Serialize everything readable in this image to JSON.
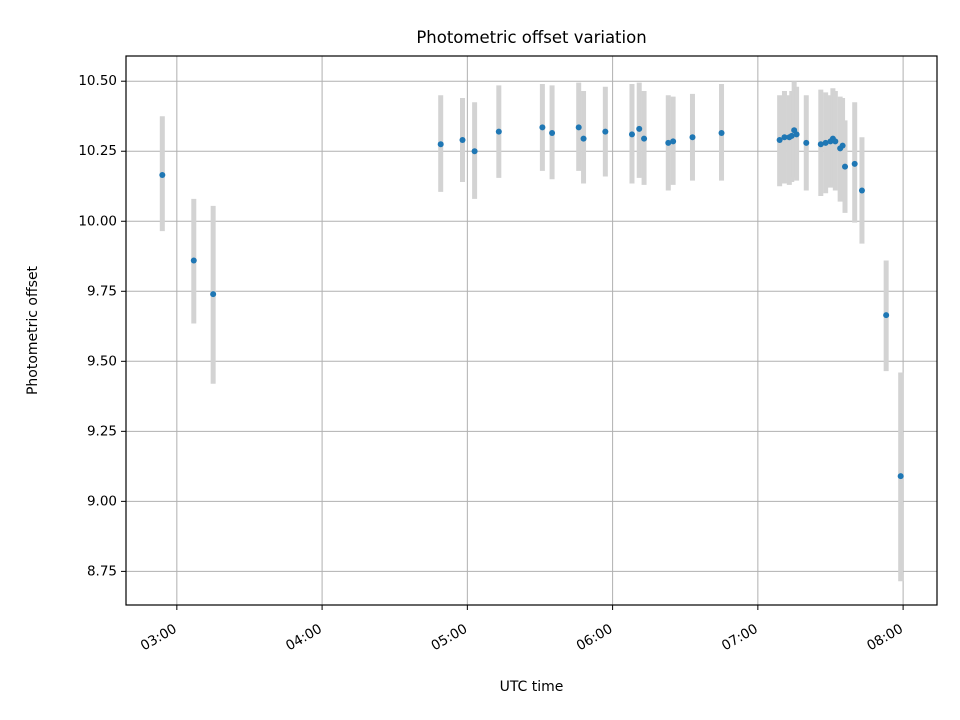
{
  "chart_data": {
    "type": "scatter",
    "title": "Photometric offset variation",
    "xlabel": "UTC time",
    "ylabel": "Photometric offset",
    "xlim": [
      "02:39",
      "08:14"
    ],
    "ylim": [
      8.63,
      10.59
    ],
    "x_ticks": [
      "03:00",
      "04:00",
      "05:00",
      "06:00",
      "07:00",
      "08:00"
    ],
    "y_ticks": [
      "8.75",
      "9.00",
      "9.25",
      "9.50",
      "9.75",
      "10.00",
      "10.25",
      "10.50"
    ],
    "grid": true,
    "colors": {
      "points": "#1f77b4",
      "error_bars": "#d3d3d3",
      "grid": "#b0b0b0"
    },
    "series": [
      {
        "points": [
          {
            "x": "02:54",
            "y": 10.165,
            "low": 9.965,
            "high": 10.375
          },
          {
            "x": "03:07",
            "y": 9.86,
            "low": 9.635,
            "high": 10.08
          },
          {
            "x": "03:15",
            "y": 9.74,
            "low": 9.42,
            "high": 10.055
          },
          {
            "x": "04:49",
            "y": 10.275,
            "low": 10.105,
            "high": 10.45
          },
          {
            "x": "04:58",
            "y": 10.29,
            "low": 10.14,
            "high": 10.44
          },
          {
            "x": "05:03",
            "y": 10.25,
            "low": 10.08,
            "high": 10.425
          },
          {
            "x": "05:13",
            "y": 10.32,
            "low": 10.155,
            "high": 10.485
          },
          {
            "x": "05:31",
            "y": 10.335,
            "low": 10.18,
            "high": 10.49
          },
          {
            "x": "05:35",
            "y": 10.315,
            "low": 10.15,
            "high": 10.485
          },
          {
            "x": "05:46",
            "y": 10.335,
            "low": 10.18,
            "high": 10.495
          },
          {
            "x": "05:48",
            "y": 10.295,
            "low": 10.135,
            "high": 10.465
          },
          {
            "x": "05:57",
            "y": 10.32,
            "low": 10.16,
            "high": 10.48
          },
          {
            "x": "06:08",
            "y": 10.31,
            "low": 10.135,
            "high": 10.49
          },
          {
            "x": "06:11",
            "y": 10.33,
            "low": 10.155,
            "high": 10.495
          },
          {
            "x": "06:13",
            "y": 10.295,
            "low": 10.13,
            "high": 10.465
          },
          {
            "x": "06:23",
            "y": 10.28,
            "low": 10.11,
            "high": 10.45
          },
          {
            "x": "06:25",
            "y": 10.285,
            "low": 10.13,
            "high": 10.445
          },
          {
            "x": "06:33",
            "y": 10.3,
            "low": 10.145,
            "high": 10.455
          },
          {
            "x": "06:45",
            "y": 10.315,
            "low": 10.145,
            "high": 10.49
          },
          {
            "x": "07:09",
            "y": 10.29,
            "low": 10.125,
            "high": 10.45
          },
          {
            "x": "07:11",
            "y": 10.3,
            "low": 10.135,
            "high": 10.465
          },
          {
            "x": "07:13",
            "y": 10.3,
            "low": 10.13,
            "high": 10.45
          },
          {
            "x": "07:14",
            "y": 10.305,
            "low": 10.14,
            "high": 10.465
          },
          {
            "x": "07:15",
            "y": 10.325,
            "low": 10.155,
            "high": 10.5
          },
          {
            "x": "07:16",
            "y": 10.31,
            "low": 10.145,
            "high": 10.48
          },
          {
            "x": "07:20",
            "y": 10.28,
            "low": 10.11,
            "high": 10.45
          },
          {
            "x": "07:26",
            "y": 10.275,
            "low": 10.09,
            "high": 10.47
          },
          {
            "x": "07:28",
            "y": 10.28,
            "low": 10.1,
            "high": 10.46
          },
          {
            "x": "07:30",
            "y": 10.285,
            "low": 10.12,
            "high": 10.45
          },
          {
            "x": "07:31",
            "y": 10.295,
            "low": 10.125,
            "high": 10.475
          },
          {
            "x": "07:32",
            "y": 10.285,
            "low": 10.11,
            "high": 10.465
          },
          {
            "x": "07:34",
            "y": 10.26,
            "low": 10.07,
            "high": 10.445
          },
          {
            "x": "07:35",
            "y": 10.27,
            "low": 10.1,
            "high": 10.44
          },
          {
            "x": "07:36",
            "y": 10.195,
            "low": 10.03,
            "high": 10.36
          },
          {
            "x": "07:40",
            "y": 10.205,
            "low": 9.995,
            "high": 10.425
          },
          {
            "x": "07:43",
            "y": 10.11,
            "low": 9.92,
            "high": 10.3
          },
          {
            "x": "07:53",
            "y": 9.665,
            "low": 9.465,
            "high": 9.86
          },
          {
            "x": "07:59",
            "y": 9.09,
            "low": 8.715,
            "high": 9.46
          }
        ]
      }
    ]
  }
}
